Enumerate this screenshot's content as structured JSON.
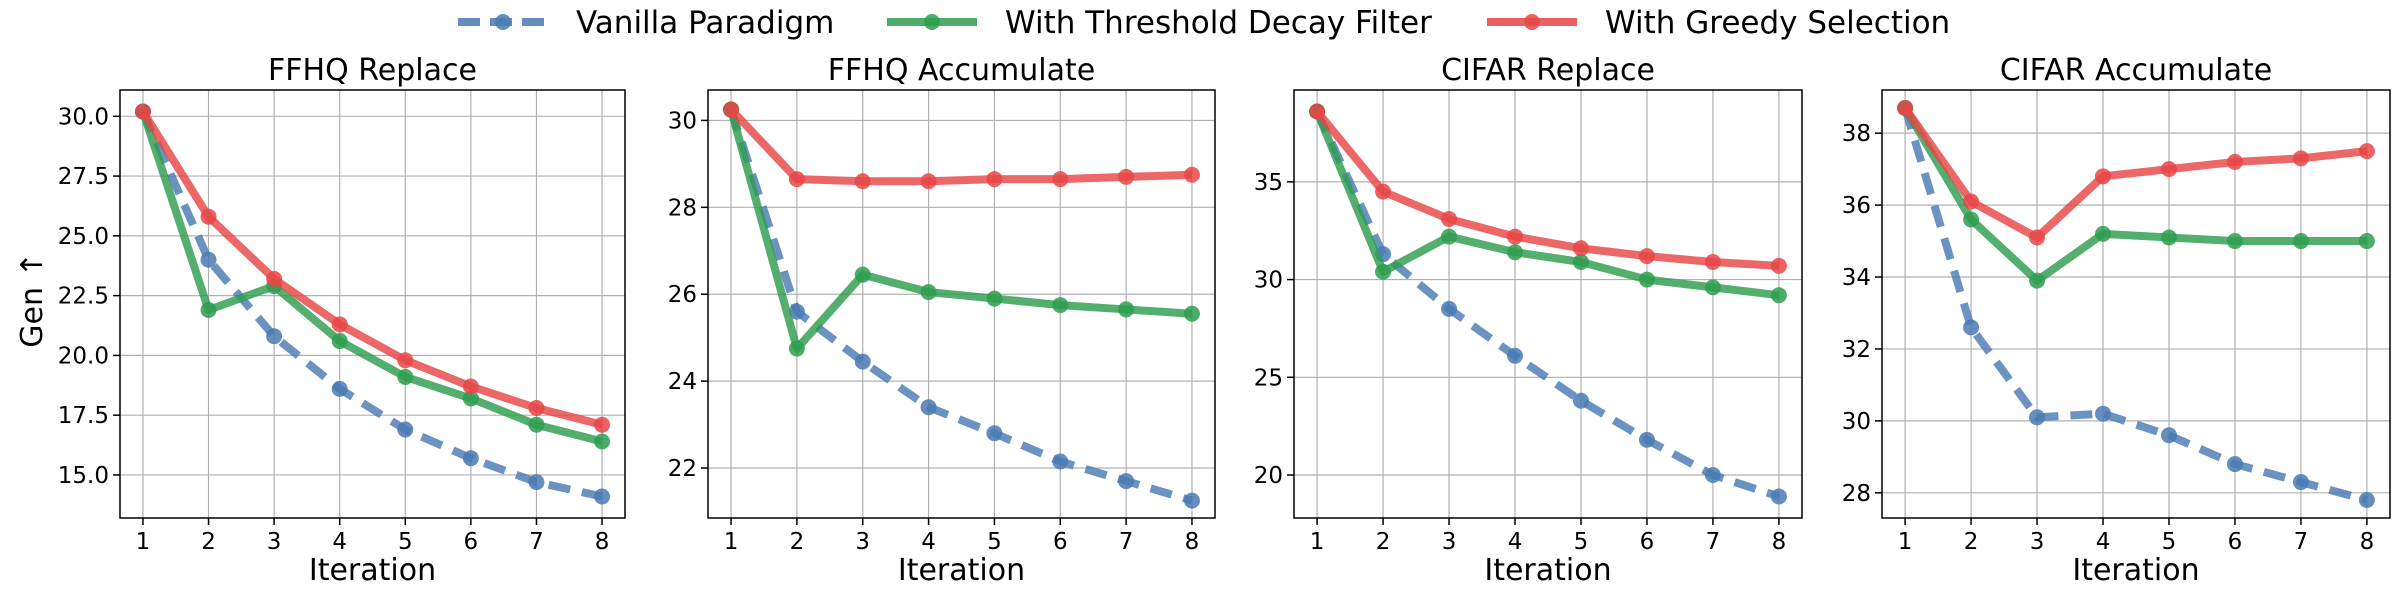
{
  "legend": [
    {
      "label": "Vanilla Paradigm",
      "color": "#4a7ab3",
      "dash": true
    },
    {
      "label": "With Threshold Decay Filter",
      "color": "#2e9e4f",
      "dash": false
    },
    {
      "label": "With Greedy Selection",
      "color": "#e84646",
      "dash": false
    }
  ],
  "shared": {
    "xlabel": "Iteration",
    "ylabel": "Gen ↑"
  },
  "chart_data": [
    {
      "type": "line",
      "title": "FFHQ Replace",
      "xlabel": "Iteration",
      "ylabel": "Gen ↑",
      "x": [
        1,
        2,
        3,
        4,
        5,
        6,
        7,
        8
      ],
      "xlim": [
        0.65,
        8.35
      ],
      "ylim": [
        13.2,
        31.1
      ],
      "yticks": [
        "15.0",
        "17.5",
        "20.0",
        "22.5",
        "25.0",
        "27.5",
        "30.0"
      ],
      "grid": true,
      "series": [
        {
          "name": "Vanilla Paradigm",
          "values": [
            30.2,
            24.0,
            20.8,
            18.6,
            16.9,
            15.7,
            14.7,
            14.1
          ]
        },
        {
          "name": "With Threshold Decay Filter",
          "values": [
            30.2,
            21.9,
            22.9,
            20.6,
            19.1,
            18.2,
            17.1,
            16.4
          ]
        },
        {
          "name": "With Greedy Selection",
          "values": [
            30.2,
            25.8,
            23.2,
            21.3,
            19.8,
            18.7,
            17.8,
            17.1
          ]
        }
      ]
    },
    {
      "type": "line",
      "title": "FFHQ Accumulate",
      "xlabel": "Iteration",
      "ylabel": "",
      "x": [
        1,
        2,
        3,
        4,
        5,
        6,
        7,
        8
      ],
      "xlim": [
        0.65,
        8.35
      ],
      "ylim": [
        20.85,
        30.7
      ],
      "yticks": [
        "22",
        "24",
        "26",
        "28",
        "30"
      ],
      "grid": true,
      "series": [
        {
          "name": "Vanilla Paradigm",
          "values": [
            30.25,
            25.6,
            24.45,
            23.4,
            22.8,
            22.15,
            21.7,
            21.25
          ]
        },
        {
          "name": "With Threshold Decay Filter",
          "values": [
            30.25,
            24.75,
            26.45,
            26.05,
            25.9,
            25.75,
            25.65,
            25.55
          ]
        },
        {
          "name": "With Greedy Selection",
          "values": [
            30.25,
            28.65,
            28.6,
            28.6,
            28.65,
            28.65,
            28.7,
            28.75
          ]
        }
      ]
    },
    {
      "type": "line",
      "title": "CIFAR Replace",
      "xlabel": "Iteration",
      "ylabel": "",
      "x": [
        1,
        2,
        3,
        4,
        5,
        6,
        7,
        8
      ],
      "xlim": [
        0.65,
        8.35
      ],
      "ylim": [
        17.8,
        39.7
      ],
      "yticks": [
        "20",
        "25",
        "30",
        "35"
      ],
      "grid": true,
      "series": [
        {
          "name": "Vanilla Paradigm",
          "values": [
            38.6,
            31.3,
            28.5,
            26.1,
            23.8,
            21.8,
            20.0,
            18.9
          ]
        },
        {
          "name": "With Threshold Decay Filter",
          "values": [
            38.6,
            30.4,
            32.2,
            31.4,
            30.9,
            30.0,
            29.6,
            29.2
          ]
        },
        {
          "name": "With Greedy Selection",
          "values": [
            38.6,
            34.5,
            33.1,
            32.2,
            31.6,
            31.2,
            30.9,
            30.7
          ]
        }
      ]
    },
    {
      "type": "line",
      "title": "CIFAR Accumulate",
      "xlabel": "Iteration",
      "ylabel": "",
      "x": [
        1,
        2,
        3,
        4,
        5,
        6,
        7,
        8
      ],
      "xlim": [
        0.65,
        8.35
      ],
      "ylim": [
        27.3,
        39.2
      ],
      "yticks": [
        "28",
        "30",
        "32",
        "34",
        "36",
        "38"
      ],
      "grid": true,
      "series": [
        {
          "name": "Vanilla Paradigm",
          "values": [
            38.7,
            32.6,
            30.1,
            30.2,
            29.6,
            28.8,
            28.3,
            27.8
          ]
        },
        {
          "name": "With Threshold Decay Filter",
          "values": [
            38.7,
            35.6,
            33.9,
            35.2,
            35.1,
            35.0,
            35.0,
            35.0
          ]
        },
        {
          "name": "With Greedy Selection",
          "values": [
            38.7,
            36.1,
            35.1,
            36.8,
            37.0,
            37.2,
            37.3,
            37.5
          ]
        }
      ]
    }
  ]
}
